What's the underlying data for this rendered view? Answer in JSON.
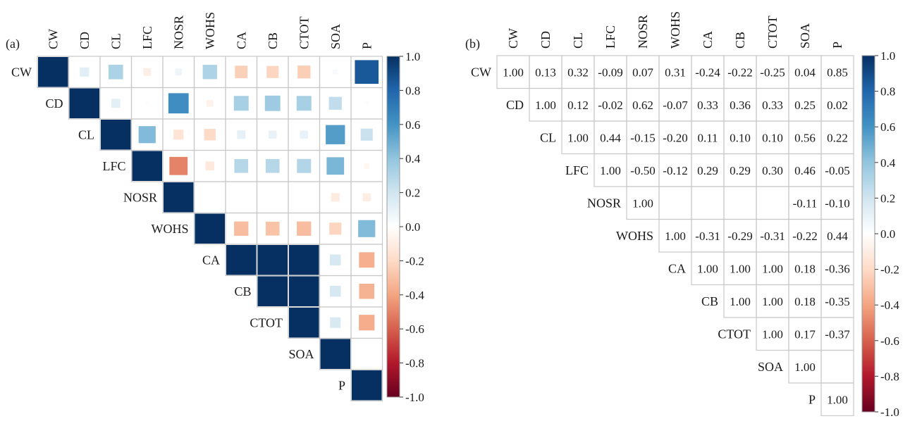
{
  "chart_data": [
    {
      "type": "heatmap",
      "panel_label": "(a)",
      "style": "square-size",
      "variables": [
        "CW",
        "CD",
        "CL",
        "LFC",
        "NOSR",
        "WOHS",
        "CA",
        "CB",
        "CTOT",
        "SOA",
        "P"
      ],
      "matrix_upper": [
        [
          1.0,
          0.13,
          0.32,
          -0.09,
          0.07,
          0.31,
          -0.24,
          -0.22,
          -0.25,
          0.04,
          0.85
        ],
        [
          null,
          1.0,
          0.12,
          -0.02,
          0.62,
          -0.07,
          0.33,
          0.36,
          0.33,
          0.25,
          0.02
        ],
        [
          null,
          null,
          1.0,
          0.44,
          -0.15,
          -0.2,
          0.11,
          0.1,
          0.1,
          0.56,
          0.22
        ],
        [
          null,
          null,
          null,
          1.0,
          -0.5,
          -0.12,
          0.29,
          0.29,
          0.3,
          0.46,
          -0.05
        ],
        [
          null,
          null,
          null,
          null,
          1.0,
          0.0,
          0.0,
          0.0,
          0.0,
          -0.11,
          -0.1
        ],
        [
          null,
          null,
          null,
          null,
          null,
          1.0,
          -0.31,
          -0.29,
          -0.31,
          -0.22,
          0.44
        ],
        [
          null,
          null,
          null,
          null,
          null,
          null,
          1.0,
          1.0,
          1.0,
          0.18,
          -0.36
        ],
        [
          null,
          null,
          null,
          null,
          null,
          null,
          null,
          1.0,
          1.0,
          0.18,
          -0.35
        ],
        [
          null,
          null,
          null,
          null,
          null,
          null,
          null,
          null,
          1.0,
          0.17,
          -0.37
        ],
        [
          null,
          null,
          null,
          null,
          null,
          null,
          null,
          null,
          null,
          1.0,
          0.0
        ],
        [
          null,
          null,
          null,
          null,
          null,
          null,
          null,
          null,
          null,
          null,
          1.0
        ]
      ],
      "colorbar": {
        "min": -1.0,
        "max": 1.0,
        "ticks": [
          "1.0",
          "0.8",
          "0.6",
          "0.4",
          "0.2",
          "0.0",
          "-0.2",
          "-0.4",
          "-0.6",
          "-0.8",
          "-1.0"
        ]
      }
    },
    {
      "type": "heatmap",
      "panel_label": "(b)",
      "style": "number",
      "variables": [
        "CW",
        "CD",
        "CL",
        "LFC",
        "NOSR",
        "WOHS",
        "CA",
        "CB",
        "CTOT",
        "SOA",
        "P"
      ],
      "matrix_upper": [
        [
          1.0,
          0.13,
          0.32,
          -0.09,
          0.07,
          0.31,
          -0.24,
          -0.22,
          -0.25,
          0.04,
          0.85
        ],
        [
          null,
          1.0,
          0.12,
          -0.02,
          0.62,
          -0.07,
          0.33,
          0.36,
          0.33,
          0.25,
          0.02
        ],
        [
          null,
          null,
          1.0,
          0.44,
          -0.15,
          -0.2,
          0.11,
          0.1,
          0.1,
          0.56,
          0.22
        ],
        [
          null,
          null,
          null,
          1.0,
          -0.5,
          -0.12,
          0.29,
          0.29,
          0.3,
          0.46,
          -0.05
        ],
        [
          null,
          null,
          null,
          null,
          1.0,
          0.0,
          0.0,
          0.0,
          0.0,
          -0.11,
          -0.1
        ],
        [
          null,
          null,
          null,
          null,
          null,
          1.0,
          -0.31,
          -0.29,
          -0.31,
          -0.22,
          0.44
        ],
        [
          null,
          null,
          null,
          null,
          null,
          null,
          1.0,
          1.0,
          1.0,
          0.18,
          -0.36
        ],
        [
          null,
          null,
          null,
          null,
          null,
          null,
          null,
          1.0,
          1.0,
          0.18,
          -0.35
        ],
        [
          null,
          null,
          null,
          null,
          null,
          null,
          null,
          null,
          1.0,
          0.17,
          -0.37
        ],
        [
          null,
          null,
          null,
          null,
          null,
          null,
          null,
          null,
          null,
          1.0,
          0.0
        ],
        [
          null,
          null,
          null,
          null,
          null,
          null,
          null,
          null,
          null,
          null,
          1.0
        ]
      ],
      "colorbar": {
        "min": -1.0,
        "max": 1.0,
        "ticks": [
          "1.0",
          "0.8",
          "0.6",
          "0.4",
          "0.2",
          "0.0",
          "-0.2",
          "-0.4",
          "-0.6",
          "-0.8",
          "-1.0"
        ]
      }
    }
  ],
  "colors": {
    "scale": [
      "#67001f",
      "#b2182b",
      "#d6604d",
      "#f4a582",
      "#fddbc7",
      "#ffffff",
      "#d1e5f0",
      "#92c5de",
      "#4393c3",
      "#2166ac",
      "#053061"
    ],
    "grid": "#c8c8c8",
    "diag_label_muted": "#6a6a6a"
  }
}
